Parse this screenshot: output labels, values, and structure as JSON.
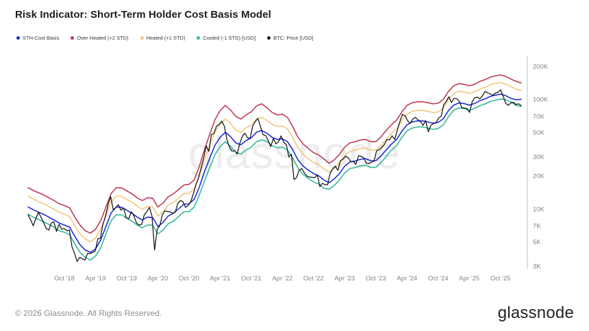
{
  "header": {
    "title": "Risk Indicator: Short-Term Holder Cost Basis Model"
  },
  "legend": {
    "items": [
      {
        "label": "STH-Cost Basis"
      },
      {
        "label": "Over Heated (+2 STD)"
      },
      {
        "label": "Heated (+1 STD)"
      },
      {
        "label": "Cooled (-1 STD) [USD]"
      },
      {
        "label": "BTC: Price [USD]"
      }
    ]
  },
  "watermark": "glassnode",
  "footer": {
    "copyright": "© 2026 Glassnode. All Rights Reserved.",
    "brand": "glassnode"
  },
  "chart_data": {
    "type": "line",
    "title": "Risk Indicator: Short-Term Holder Cost Basis Model",
    "y_scale": "log",
    "y_axis_side": "right",
    "grid": false,
    "axis_line_color": "#cde8e2",
    "tick_label_color": "#7d838c",
    "time_range": "Mar 2018 to Feb 2026, monthly samples (BTC price 2 samples/month)",
    "months_total": 96,
    "y_ticks": [
      {
        "label": "200K",
        "value": 200000
      },
      {
        "label": "100K",
        "value": 100000
      },
      {
        "label": "70K",
        "value": 70000
      },
      {
        "label": "50K",
        "value": 50000
      },
      {
        "label": "30K",
        "value": 30000
      },
      {
        "label": "20K",
        "value": 20000
      },
      {
        "label": "10K",
        "value": 10000
      },
      {
        "label": "7K",
        "value": 7000
      },
      {
        "label": "5K",
        "value": 5000
      },
      {
        "label": "3K",
        "value": 3000
      }
    ],
    "x_ticks": [
      {
        "label": "Oct '18",
        "month_index": 7
      },
      {
        "label": "Apr '19",
        "month_index": 13
      },
      {
        "label": "Oct '19",
        "month_index": 19
      },
      {
        "label": "Apr '20",
        "month_index": 25
      },
      {
        "label": "Oct '20",
        "month_index": 31
      },
      {
        "label": "Apr '21",
        "month_index": 37
      },
      {
        "label": "Oct '21",
        "month_index": 43
      },
      {
        "label": "Apr '22",
        "month_index": 49
      },
      {
        "label": "Oct '22",
        "month_index": 55
      },
      {
        "label": "Apr '23",
        "month_index": 61
      },
      {
        "label": "Oct '23",
        "month_index": 67
      },
      {
        "label": "Apr '24",
        "month_index": 73
      },
      {
        "label": "Oct '24",
        "month_index": 79
      },
      {
        "label": "Apr '25",
        "month_index": 85
      },
      {
        "label": "Oct '25",
        "month_index": 91
      }
    ],
    "series": [
      {
        "id": "sth",
        "name": "STH-Cost Basis",
        "color": "#1c2bd9",
        "unit": "USD thousands",
        "values": [
          10.4,
          9.8,
          9.3,
          8.9,
          8.4,
          7.9,
          7.4,
          7.1,
          6.8,
          5.6,
          4.7,
          4.2,
          4.0,
          4.3,
          5.2,
          6.9,
          9.2,
          10.4,
          10.3,
          9.7,
          9.1,
          8.4,
          7.9,
          8.4,
          8.3,
          6.9,
          7.5,
          8.6,
          9.1,
          10.0,
          11.0,
          11.1,
          12.2,
          15.8,
          22.0,
          29.0,
          38.0,
          45.0,
          50.0,
          45.5,
          40.0,
          38.5,
          42.0,
          44.5,
          50.0,
          52.0,
          49.0,
          45.0,
          43.0,
          43.5,
          41.0,
          34.5,
          28.0,
          24.5,
          22.5,
          21.0,
          20.0,
          18.3,
          17.3,
          18.8,
          21.0,
          24.5,
          26.8,
          27.3,
          28.3,
          28.7,
          27.5,
          27.5,
          30.5,
          34.5,
          39.0,
          43.0,
          51.0,
          58.5,
          62.0,
          63.5,
          63.5,
          62.0,
          60.5,
          61.5,
          66.5,
          79.0,
          88.5,
          92.5,
          91.5,
          88.5,
          91.5,
          97.0,
          100.5,
          106.0,
          109.0,
          111.5,
          108.0,
          102.0,
          99.0,
          100.0
        ]
      },
      {
        "id": "overheated",
        "name": "Over Heated (+2 STD)",
        "color": "#bf3a52",
        "unit": "USD thousands",
        "values": [
          15.6,
          14.7,
          14.0,
          13.4,
          12.6,
          11.9,
          11.1,
          10.7,
          10.2,
          8.4,
          7.1,
          6.3,
          6.0,
          6.5,
          7.8,
          10.4,
          13.8,
          15.6,
          15.5,
          14.6,
          13.7,
          12.6,
          11.9,
          12.6,
          12.5,
          10.4,
          11.3,
          12.9,
          13.7,
          15.0,
          16.5,
          16.7,
          18.3,
          24.5,
          35.0,
          48.0,
          65.0,
          79.0,
          88.0,
          80.0,
          70.0,
          66.0,
          72.0,
          77.0,
          87.0,
          91.0,
          84.0,
          76.0,
          72.0,
          73.0,
          68.0,
          56.0,
          45.0,
          39.0,
          35.5,
          32.5,
          31.0,
          28.5,
          26.0,
          28.0,
          31.5,
          36.5,
          40.0,
          41.0,
          42.5,
          43.0,
          41.0,
          41.0,
          45.5,
          52.0,
          58.5,
          64.5,
          76.5,
          88.0,
          93.0,
          95.0,
          95.0,
          93.0,
          91.0,
          92.0,
          100.0,
          118.5,
          133.0,
          139.0,
          137.0,
          133.0,
          137.0,
          145.5,
          151.0,
          159.0,
          163.5,
          167.0,
          162.0,
          153.0,
          146.0,
          141.0
        ]
      },
      {
        "id": "heated",
        "name": "Heated (+1 STD)",
        "color": "#f2c77d",
        "unit": "USD thousands",
        "values": [
          13.0,
          12.3,
          11.6,
          11.1,
          10.5,
          9.9,
          9.3,
          8.9,
          8.5,
          7.0,
          5.9,
          5.3,
          5.0,
          5.4,
          6.5,
          8.6,
          11.6,
          13.1,
          13.0,
          12.2,
          11.5,
          10.6,
          9.9,
          10.5,
          10.4,
          8.6,
          9.4,
          10.8,
          11.4,
          12.5,
          13.8,
          13.9,
          15.1,
          20.0,
          28.5,
          38.0,
          50.0,
          59.0,
          66.0,
          60.0,
          52.5,
          50.0,
          55.0,
          58.5,
          66.0,
          68.5,
          64.0,
          59.0,
          56.5,
          57.0,
          53.5,
          44.5,
          36.0,
          31.5,
          28.5,
          26.5,
          25.2,
          23.1,
          21.6,
          23.5,
          26.3,
          30.6,
          33.5,
          34.1,
          35.4,
          35.9,
          34.4,
          34.4,
          38.1,
          43.1,
          48.8,
          53.8,
          63.8,
          73.1,
          77.5,
          79.4,
          79.4,
          77.5,
          75.6,
          76.9,
          83.1,
          98.8,
          113.0,
          118.5,
          117.0,
          113.5,
          117.0,
          124.0,
          128.5,
          135.5,
          139.5,
          142.5,
          138.0,
          130.5,
          124.0,
          120.0
        ]
      },
      {
        "id": "cooled",
        "name": "Cooled (-1 STD) [USD]",
        "color": "#32b79c",
        "unit": "USD thousands",
        "values": [
          8.9,
          8.4,
          8.0,
          7.6,
          7.2,
          6.8,
          6.3,
          6.1,
          5.8,
          4.8,
          4.0,
          3.6,
          3.4,
          3.7,
          4.4,
          5.9,
          7.8,
          8.8,
          8.8,
          8.2,
          7.7,
          7.1,
          6.7,
          7.1,
          7.1,
          5.9,
          6.4,
          7.3,
          7.7,
          8.5,
          9.4,
          9.4,
          10.4,
          13.4,
          18.0,
          23.8,
          31.2,
          36.9,
          41.0,
          37.3,
          32.8,
          31.6,
          34.4,
          36.5,
          41.0,
          42.6,
          41.2,
          37.8,
          36.1,
          36.5,
          34.4,
          29.0,
          23.5,
          20.6,
          18.9,
          17.6,
          16.8,
          15.4,
          15.1,
          16.4,
          18.3,
          21.3,
          23.3,
          23.8,
          24.6,
          25.0,
          23.9,
          23.9,
          26.5,
          30.0,
          34.3,
          37.8,
          44.9,
          51.5,
          54.6,
          55.9,
          55.9,
          54.6,
          53.2,
          54.1,
          58.5,
          69.5,
          79.7,
          83.3,
          82.4,
          79.7,
          82.4,
          87.3,
          90.5,
          95.4,
          98.1,
          100.4,
          99.4,
          94.9,
          88.0,
          86.0
        ]
      },
      {
        "id": "btc",
        "name": "BTC: Price [USD]",
        "color": "#121316",
        "unit": "USD thousands",
        "samples_per_month": 2,
        "values": [
          8.8,
          7.9,
          7.0,
          8.1,
          9.3,
          8.4,
          7.5,
          6.6,
          6.4,
          7.4,
          7.6,
          6.2,
          7.2,
          6.5,
          6.6,
          6.3,
          6.4,
          4.5,
          3.9,
          3.3,
          3.6,
          3.5,
          3.4,
          3.9,
          3.9,
          4.0,
          4.1,
          5.3,
          5.4,
          7.2,
          8.6,
          11.0,
          12.9,
          9.8,
          10.3,
          10.9,
          9.7,
          10.2,
          8.3,
          8.1,
          9.4,
          8.6,
          7.4,
          7.1,
          7.2,
          8.8,
          9.4,
          10.3,
          8.6,
          4.2,
          6.5,
          7.0,
          8.8,
          9.6,
          9.4,
          9.4,
          9.1,
          9.3,
          11.2,
          11.9,
          11.6,
          10.3,
          10.7,
          11.6,
          13.7,
          16.5,
          19.2,
          23.5,
          29.2,
          37.5,
          33.4,
          47.5,
          49.0,
          57.0,
          58.8,
          63.2,
          57.0,
          43.0,
          36.5,
          33.5,
          34.0,
          31.6,
          39.5,
          46.0,
          49.0,
          44.5,
          44.0,
          57.3,
          62.5,
          66.9,
          56.5,
          47.5,
          46.8,
          42.0,
          36.9,
          44.0,
          39.2,
          41.0,
          46.3,
          40.5,
          38.6,
          29.8,
          31.5,
          18.5,
          19.3,
          22.5,
          23.3,
          21.3,
          19.9,
          19.5,
          19.4,
          19.2,
          20.4,
          16.0,
          17.1,
          16.6,
          16.6,
          21.0,
          23.2,
          24.5,
          22.4,
          27.5,
          28.4,
          30.2,
          29.2,
          27.0,
          27.1,
          25.5,
          30.6,
          30.1,
          29.2,
          26.1,
          25.9,
          26.6,
          27.2,
          33.9,
          34.7,
          36.3,
          38.7,
          42.9,
          42.6,
          46.3,
          43.0,
          52.0,
          62.4,
          72.8,
          70.8,
          63.8,
          60.2,
          66.0,
          68.3,
          65.0,
          62.7,
          57.8,
          64.0,
          50.5,
          58.0,
          59.8,
          61.0,
          67.5,
          69.9,
          89.0,
          96.0,
          105.5,
          93.5,
          102.0,
          101.5,
          96.0,
          84.0,
          83.0,
          82.5,
          76.0,
          95.0,
          103.5,
          104.5,
          101.0,
          108.0,
          118.0,
          114.5,
          112.0,
          108.5,
          114.0,
          116.0,
          122.0,
          106.5,
          92.0,
          88.0,
          92.5,
          94.0,
          89.5,
          91.0,
          87.5
        ]
      }
    ]
  }
}
